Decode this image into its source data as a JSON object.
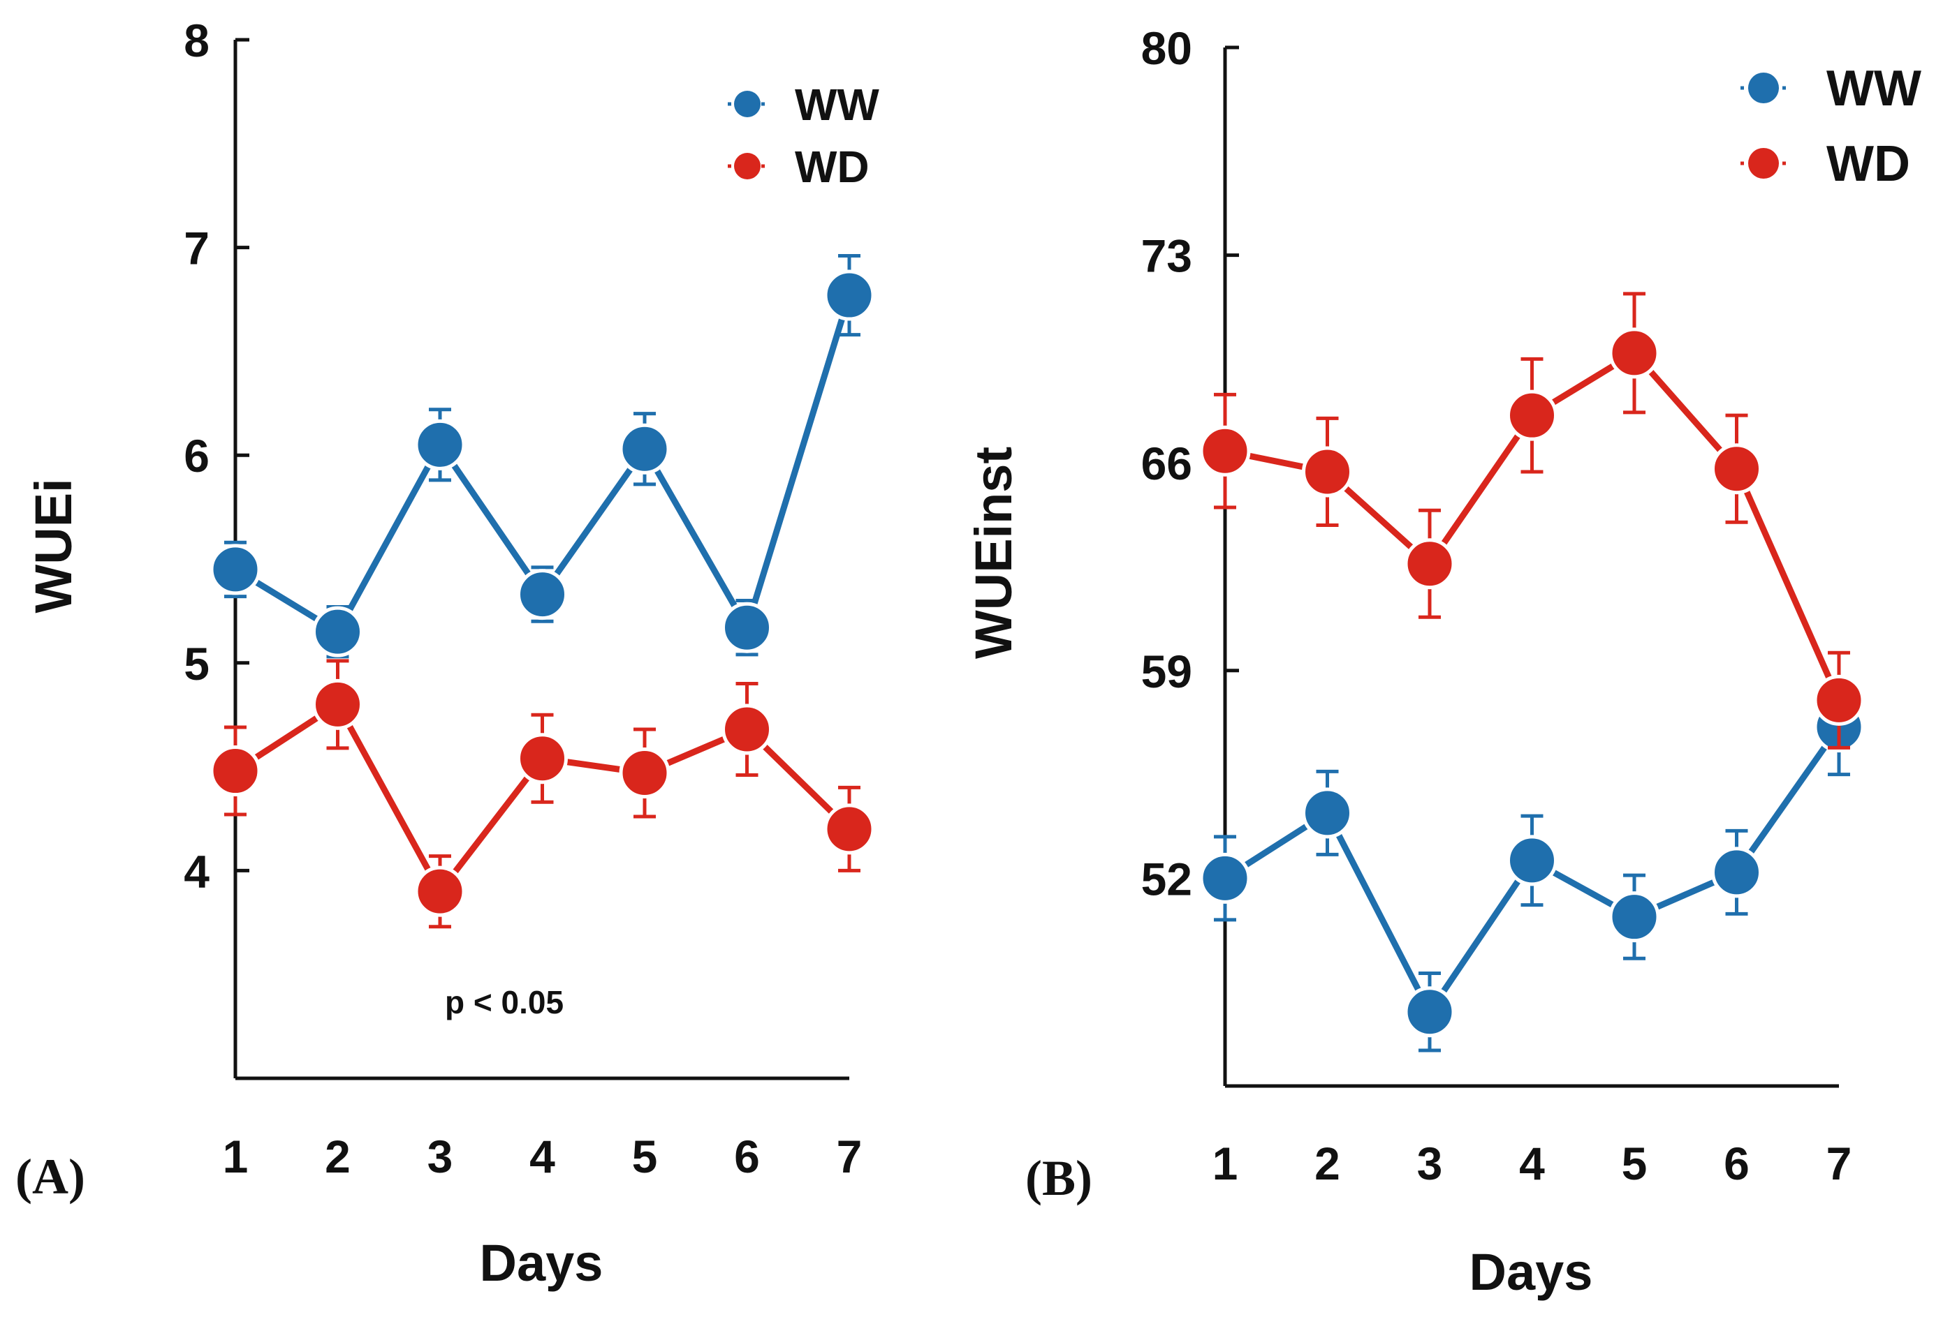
{
  "colors": {
    "ww": "#1f6fad",
    "wd": "#d9261c",
    "axis": "#111111"
  },
  "chart_data": [
    {
      "type": "line",
      "panel_label": "(A)",
      "xlabel": "Days",
      "ylabel": "WUEi",
      "x": [
        1,
        2,
        3,
        4,
        5,
        6,
        7
      ],
      "x_tick_labels": [
        "1",
        "2",
        "3",
        "4",
        "5",
        "6",
        "7"
      ],
      "ylim": [
        3,
        8
      ],
      "y_ticks": [
        4,
        5,
        6,
        7,
        8
      ],
      "y_tick_labels": [
        "4",
        "5",
        "6",
        "7",
        "8"
      ],
      "legend": [
        "WW",
        "WD"
      ],
      "legend_position": "top-right",
      "annotation": "p < 0.05",
      "series": [
        {
          "name": "WW",
          "color_key": "ww",
          "values": [
            5.45,
            5.15,
            6.05,
            5.33,
            6.03,
            5.17,
            6.77
          ],
          "errors": [
            0.13,
            0.12,
            0.17,
            0.13,
            0.17,
            0.13,
            0.19
          ]
        },
        {
          "name": "WD",
          "color_key": "wd",
          "values": [
            4.48,
            4.8,
            3.9,
            4.54,
            4.47,
            4.68,
            4.2
          ],
          "errors": [
            0.21,
            0.21,
            0.17,
            0.21,
            0.21,
            0.22,
            0.2
          ]
        }
      ]
    },
    {
      "type": "line",
      "panel_label": "(B)",
      "xlabel": "Days",
      "ylabel": "WUEinst",
      "x": [
        1,
        2,
        3,
        4,
        5,
        6,
        7
      ],
      "x_tick_labels": [
        "1",
        "2",
        "3",
        "4",
        "5",
        "6",
        "7"
      ],
      "ylim": [
        45,
        80
      ],
      "y_ticks": [
        52,
        59,
        66,
        73,
        80
      ],
      "y_tick_labels": [
        "52",
        "59",
        "66",
        "73",
        "80"
      ],
      "legend": [
        "WW",
        "WD"
      ],
      "legend_position": "top-right",
      "annotation": "",
      "series": [
        {
          "name": "WW",
          "color_key": "ww",
          "values": [
            52.0,
            54.2,
            47.5,
            52.6,
            50.7,
            52.2,
            57.1
          ],
          "errors": [
            1.4,
            1.4,
            1.3,
            1.5,
            1.4,
            1.4,
            1.6
          ]
        },
        {
          "name": "WD",
          "color_key": "wd",
          "values": [
            66.4,
            65.7,
            62.6,
            67.6,
            69.7,
            65.8,
            58.0
          ],
          "errors": [
            1.9,
            1.8,
            1.8,
            1.9,
            2.0,
            1.8,
            1.6
          ]
        }
      ]
    }
  ]
}
